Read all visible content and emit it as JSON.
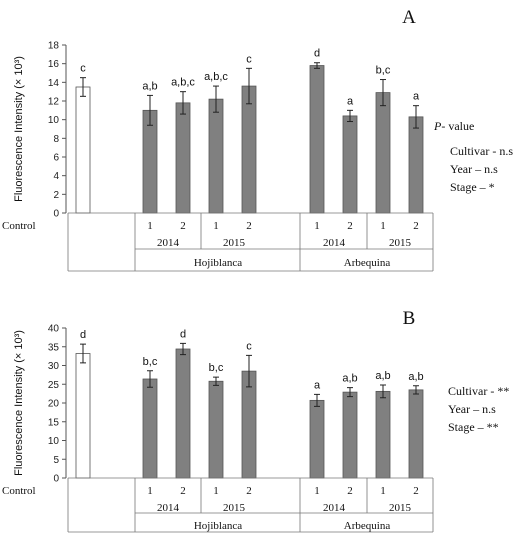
{
  "chart_data": [
    {
      "panel": "A",
      "type": "bar",
      "ylabel": "Fluorescence Intensity (× 10³)",
      "ylim": [
        0,
        18
      ],
      "yticks": [
        "0",
        "2",
        "4",
        "6",
        "8",
        "10",
        "12",
        "14",
        "16",
        "18"
      ],
      "tickmax": 18,
      "bars": [
        {
          "label": "Control",
          "value": 13.5,
          "err": 1.0,
          "sig": "c",
          "kind": "control"
        },
        {
          "label": "1",
          "value": 11.0,
          "err": 1.6,
          "sig": "a,b",
          "kind": "treatment"
        },
        {
          "label": "2",
          "value": 11.8,
          "err": 1.2,
          "sig": "a,b,c",
          "kind": "treatment"
        },
        {
          "label": "1",
          "value": 12.2,
          "err": 1.4,
          "sig": "a,b,c",
          "kind": "treatment"
        },
        {
          "label": "2",
          "value": 13.6,
          "err": 1.9,
          "sig": "c",
          "kind": "treatment"
        },
        {
          "label": "1",
          "value": 15.8,
          "err": 0.3,
          "sig": "d",
          "kind": "treatment"
        },
        {
          "label": "2",
          "value": 10.4,
          "err": 0.6,
          "sig": "a",
          "kind": "treatment"
        },
        {
          "label": "1",
          "value": 12.9,
          "err": 1.4,
          "sig": "b,c",
          "kind": "treatment"
        },
        {
          "label": "2",
          "value": 10.3,
          "err": 1.2,
          "sig": "a",
          "kind": "treatment"
        }
      ],
      "years": [
        "2014",
        "2015",
        "2014",
        "2015"
      ],
      "cultivars": [
        "Hojiblanca",
        "Arbequina"
      ],
      "pvalue_title_italic": "P",
      "pvalue_title_rest": "- value",
      "stats": [
        "Cultivar  - n.s",
        "Year – n.s",
        "Stage – *"
      ]
    },
    {
      "panel": "B",
      "type": "bar",
      "ylabel": "Fluorescence Intensity (× 10³)",
      "ylim": [
        0,
        40
      ],
      "yticks": [
        "0",
        "5",
        "10",
        "15",
        "20",
        "25",
        "30",
        "35",
        "40"
      ],
      "tickmax": 40,
      "bars": [
        {
          "label": "Control",
          "value": 33.2,
          "err": 2.5,
          "sig": "d",
          "kind": "control"
        },
        {
          "label": "1",
          "value": 26.4,
          "err": 2.2,
          "sig": "b,c",
          "kind": "treatment"
        },
        {
          "label": "2",
          "value": 34.4,
          "err": 1.5,
          "sig": "d",
          "kind": "treatment"
        },
        {
          "label": "1",
          "value": 25.8,
          "err": 1.1,
          "sig": "b,c",
          "kind": "treatment"
        },
        {
          "label": "2",
          "value": 28.5,
          "err": 4.2,
          "sig": "c",
          "kind": "treatment"
        },
        {
          "label": "1",
          "value": 20.7,
          "err": 1.6,
          "sig": "a",
          "kind": "treatment"
        },
        {
          "label": "2",
          "value": 22.9,
          "err": 1.2,
          "sig": "a,b",
          "kind": "treatment"
        },
        {
          "label": "1",
          "value": 23.1,
          "err": 1.7,
          "sig": "a,b",
          "kind": "treatment"
        },
        {
          "label": "2",
          "value": 23.5,
          "err": 1.1,
          "sig": "a,b",
          "kind": "treatment"
        }
      ],
      "years": [
        "2014",
        "2015",
        "2014",
        "2015"
      ],
      "cultivars": [
        "Hojiblanca",
        "Arbequina"
      ],
      "stats": [
        "Cultivar  - **",
        "Year – n.s",
        "Stage – **"
      ]
    }
  ]
}
